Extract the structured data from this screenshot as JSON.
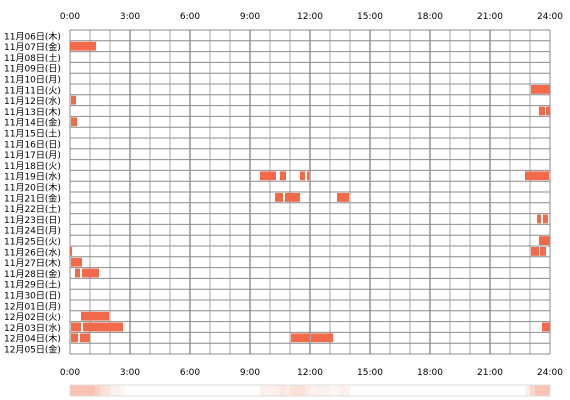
{
  "chart_data": {
    "type": "heatmap",
    "x_unit": "hour",
    "x_range": [
      0,
      24
    ],
    "x_ticks": [
      "0:00",
      "3:00",
      "6:00",
      "9:00",
      "12:00",
      "15:00",
      "18:00",
      "21:00",
      "24:00"
    ],
    "days": [
      "11月06日(木)",
      "11月07日(金)",
      "11月08日(土)",
      "11月09日(日)",
      "11月10日(月)",
      "11月11日(火)",
      "11月12日(水)",
      "11月13日(木)",
      "11月14日(金)",
      "11月15日(土)",
      "11月16日(日)",
      "11月17日(月)",
      "11月18日(火)",
      "11月19日(水)",
      "11月20日(木)",
      "11月21日(金)",
      "11月22日(土)",
      "11月23日(日)",
      "11月24日(月)",
      "11月25日(火)",
      "11月26日(水)",
      "11月27日(木)",
      "11月28日(金)",
      "11月29日(土)",
      "11月30日(日)",
      "12月01日(月)",
      "12月02日(火)",
      "12月03日(水)",
      "12月04日(木)",
      "12月05日(金)"
    ],
    "activity": [
      [],
      [
        [
          0.0,
          1.3
        ]
      ],
      [],
      [],
      [],
      [
        [
          23.05,
          24.0
        ]
      ],
      [
        [
          0.05,
          0.3
        ]
      ],
      [
        [
          23.45,
          23.75
        ],
        [
          23.8,
          24.0
        ]
      ],
      [
        [
          0.05,
          0.35
        ]
      ],
      [],
      [],
      [],
      [],
      [
        [
          9.5,
          10.3
        ],
        [
          10.5,
          10.8
        ],
        [
          11.5,
          11.75
        ],
        [
          11.85,
          11.95
        ],
        [
          22.75,
          23.95
        ]
      ],
      [],
      [
        [
          10.25,
          10.65
        ],
        [
          10.75,
          11.5
        ],
        [
          13.35,
          13.95
        ]
      ],
      [],
      [
        [
          23.35,
          23.55
        ],
        [
          23.65,
          23.9
        ]
      ],
      [],
      [
        [
          23.45,
          24.0
        ]
      ],
      [
        [
          0.0,
          0.1
        ],
        [
          23.05,
          23.45
        ],
        [
          23.5,
          23.8
        ]
      ],
      [
        [
          0.05,
          0.6
        ]
      ],
      [
        [
          0.25,
          0.5
        ],
        [
          0.6,
          1.45
        ]
      ],
      [],
      [],
      [],
      [
        [
          0.55,
          1.95
        ]
      ],
      [
        [
          0.05,
          0.55
        ],
        [
          0.65,
          2.65
        ],
        [
          23.6,
          24.0
        ]
      ],
      [
        [
          0.05,
          0.4
        ],
        [
          0.5,
          1.0
        ],
        [
          11.05,
          12.0
        ],
        [
          12.05,
          13.15
        ]
      ],
      []
    ],
    "fill_color": "#f26a4a",
    "grid_color": "#8c8c8c",
    "summary_bar_gradient": [
      "#ffffff",
      "#f9c2b2"
    ]
  }
}
